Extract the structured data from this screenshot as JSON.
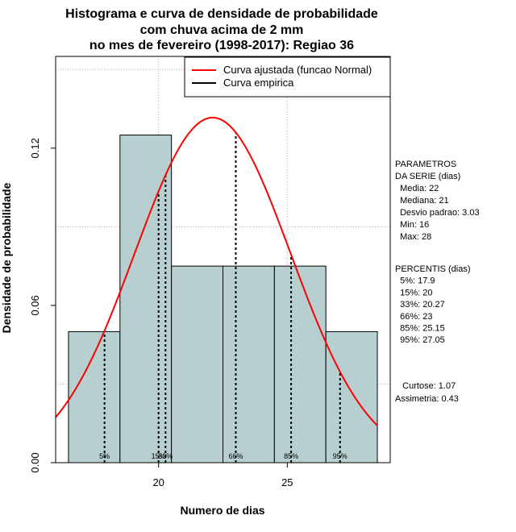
{
  "chart_data": {
    "type": "bar",
    "title_lines": [
      "Histograma e curva de densidade de probabilidade",
      "com chuva acima de 2 mm",
      "no mes de fevereiro (1998-2017): Regiao 36"
    ],
    "xlabel": "Numero de dias",
    "ylabel": "Densidade de probabilidade",
    "xlim": [
      16,
      29
    ],
    "ylim": [
      0,
      0.155
    ],
    "x_ticks": [
      20,
      25
    ],
    "x_tick_labels": [
      "20",
      "25"
    ],
    "y_ticks": [
      0.0,
      0.06,
      0.12
    ],
    "y_tick_labels": [
      "0.00",
      "0.06",
      "0.12"
    ],
    "grid_x": [
      20,
      25
    ],
    "grid_y": [
      0.03,
      0.09,
      0.15
    ],
    "bars": [
      {
        "x0": 16.5,
        "x1": 18.5,
        "density": 0.05
      },
      {
        "x0": 18.5,
        "x1": 20.5,
        "density": 0.125
      },
      {
        "x0": 20.5,
        "x1": 22.5,
        "density": 0.075
      },
      {
        "x0": 22.5,
        "x1": 24.5,
        "density": 0.075
      },
      {
        "x0": 24.5,
        "x1": 26.5,
        "density": 0.075
      },
      {
        "x0": 26.5,
        "x1": 28.5,
        "density": 0.05
      }
    ],
    "normal_curve": {
      "mean": 22.1,
      "sd": 3.03,
      "x_from": 16,
      "x_to": 28.5,
      "color": "#ff0000"
    },
    "percentile_lines": [
      {
        "label": "5%",
        "x": 17.9
      },
      {
        "label": "15%",
        "x": 20
      },
      {
        "label": "33%",
        "x": 20.27
      },
      {
        "label": "66%",
        "x": 23
      },
      {
        "label": "85%",
        "x": 25.15
      },
      {
        "label": "95%",
        "x": 27.05
      }
    ],
    "bar_color": "#b7cfd0",
    "legend": {
      "position": "top-right",
      "entries": [
        {
          "label": "Curva ajustada (funcao Normal)",
          "color": "#ff0000"
        },
        {
          "label": "Curva empirica",
          "color": "#000000"
        }
      ]
    },
    "side_text": {
      "parametros": [
        "PARAMETROS",
        "DA SERIE (dias)",
        "  Media: 22",
        "  Mediana: 21",
        "  Desvio padrao: 3.03",
        "  Min: 16",
        "  Max: 28"
      ],
      "percentis": [
        "PERCENTIS (dias)",
        "  5%: 17.9",
        "  15%: 20",
        "  33%: 20.27",
        "  66%: 23",
        "  85%: 25.15",
        "  95%: 27.05"
      ],
      "stats": [
        "   Curtose: 1.07",
        "Assimetria: 0.43"
      ]
    }
  }
}
